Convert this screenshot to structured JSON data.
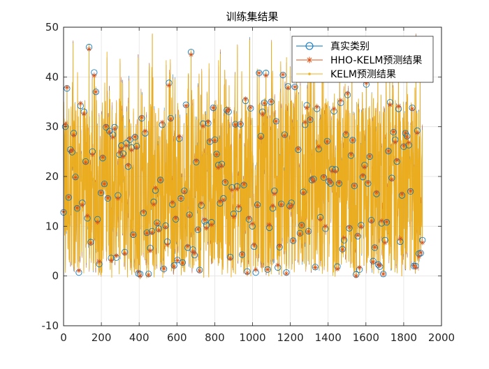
{
  "chart_data": {
    "type": "line",
    "title": "训练集结果",
    "xlabel": "",
    "ylabel": "",
    "xlim": [
      0,
      2000
    ],
    "ylim": [
      -10,
      50
    ],
    "xticks": [
      0,
      200,
      400,
      600,
      800,
      1000,
      1200,
      1400,
      1600,
      1800,
      2000
    ],
    "yticks": [
      -10,
      0,
      10,
      20,
      30,
      40,
      50
    ],
    "xtick_labels": [
      "0",
      "200",
      "400",
      "600",
      "800",
      "1000",
      "1200",
      "1400",
      "1600",
      "1800",
      "2000"
    ],
    "ytick_labels": [
      "-10",
      "0",
      "10",
      "20",
      "30",
      "40",
      "50"
    ],
    "grid": true,
    "legend_position": "top-right",
    "n_points": 1900,
    "series": [
      {
        "name": "真实类别",
        "color": "#0072BD",
        "marker": "circle"
      },
      {
        "name": "HHO-KELM预测结果",
        "color": "#D95319",
        "marker": "asterisk"
      },
      {
        "name": "KELM预测结果",
        "color": "#EDB120",
        "marker": "dot"
      }
    ],
    "sample_peaks": [
      {
        "x": 50,
        "y": 47
      },
      {
        "x": 135,
        "y": 46
      },
      {
        "x": 230,
        "y": 44
      },
      {
        "x": 395,
        "y": 44.5
      },
      {
        "x": 470,
        "y": 48.5
      },
      {
        "x": 565,
        "y": 42.5
      },
      {
        "x": 675,
        "y": 45
      },
      {
        "x": 830,
        "y": 45
      },
      {
        "x": 920,
        "y": 46
      },
      {
        "x": 985,
        "y": 48
      },
      {
        "x": 1100,
        "y": 47
      },
      {
        "x": 1200,
        "y": 42
      },
      {
        "x": 1310,
        "y": 42
      },
      {
        "x": 1490,
        "y": 38
      },
      {
        "x": 1640,
        "y": 35
      },
      {
        "x": 1740,
        "y": 34
      },
      {
        "x": 1865,
        "y": 48.5
      }
    ]
  }
}
